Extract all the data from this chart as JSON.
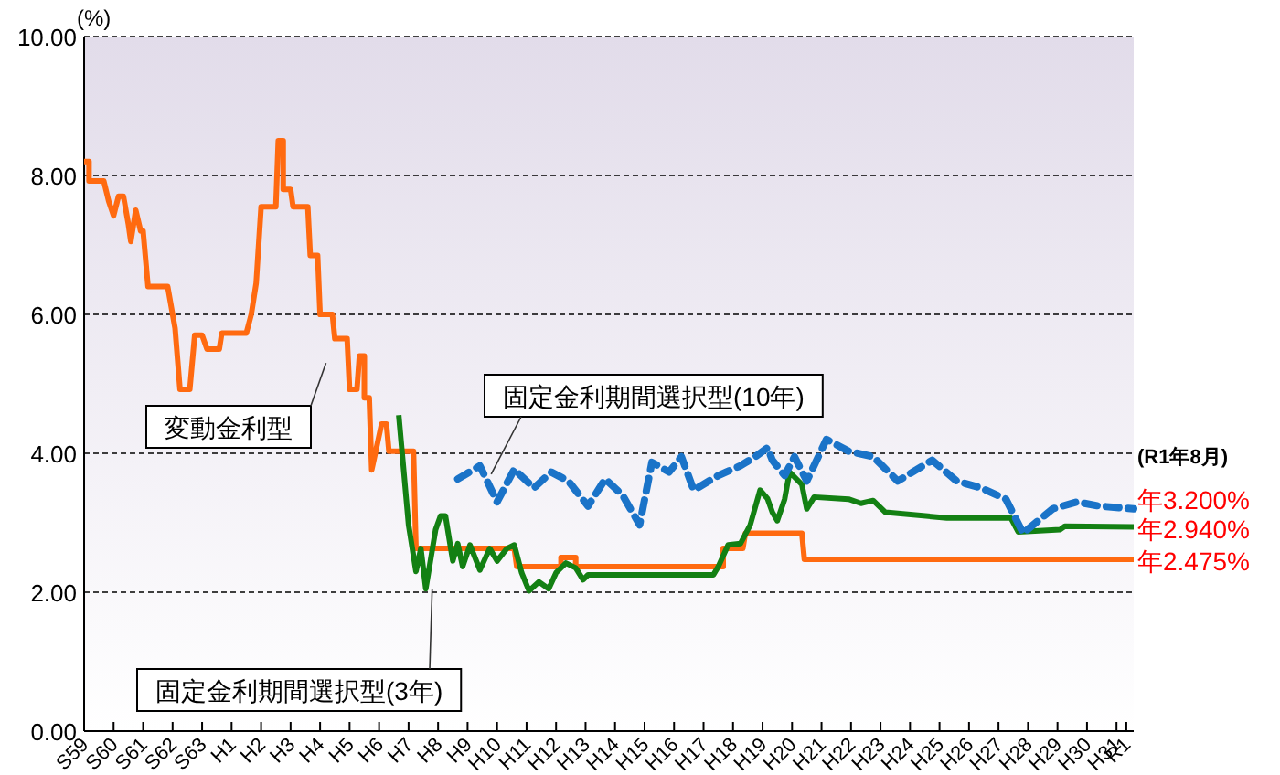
{
  "chart_data": {
    "type": "line",
    "ylabel": "(%)",
    "grid": "y",
    "xlim": [
      "1984-01",
      "2019-08"
    ],
    "ylim": [
      0,
      10
    ],
    "xticks": [
      {
        "value": "1984",
        "label": "S59"
      },
      {
        "value": "1985",
        "label": "S60"
      },
      {
        "value": "1986",
        "label": "S61"
      },
      {
        "value": "1987",
        "label": "S62"
      },
      {
        "value": "1988",
        "label": "S63"
      },
      {
        "value": "1989",
        "label": "H1"
      },
      {
        "value": "1990",
        "label": "H2"
      },
      {
        "value": "1991",
        "label": "H3"
      },
      {
        "value": "1992",
        "label": "H4"
      },
      {
        "value": "1993",
        "label": "H5"
      },
      {
        "value": "1994",
        "label": "H6"
      },
      {
        "value": "1995",
        "label": "H7"
      },
      {
        "value": "1996",
        "label": "H8"
      },
      {
        "value": "1997",
        "label": "H9"
      },
      {
        "value": "1998",
        "label": "H10"
      },
      {
        "value": "1999",
        "label": "H11"
      },
      {
        "value": "2000",
        "label": "H12"
      },
      {
        "value": "2001",
        "label": "H13"
      },
      {
        "value": "2002",
        "label": "H14"
      },
      {
        "value": "2003",
        "label": "H15"
      },
      {
        "value": "2004",
        "label": "H16"
      },
      {
        "value": "2005",
        "label": "H17"
      },
      {
        "value": "2006",
        "label": "H18"
      },
      {
        "value": "2007",
        "label": "H19"
      },
      {
        "value": "2008",
        "label": "H20"
      },
      {
        "value": "2009",
        "label": "H21"
      },
      {
        "value": "2010",
        "label": "H22"
      },
      {
        "value": "2011",
        "label": "H23"
      },
      {
        "value": "2012",
        "label": "H24"
      },
      {
        "value": "2013",
        "label": "H25"
      },
      {
        "value": "2014",
        "label": "H26"
      },
      {
        "value": "2015",
        "label": "H27"
      },
      {
        "value": "2016",
        "label": "H28"
      },
      {
        "value": "2017",
        "label": "H29"
      },
      {
        "value": "2018",
        "label": "H30"
      },
      {
        "value": "2019",
        "label": "H31"
      },
      {
        "value": "2019-05",
        "label": "R1"
      }
    ],
    "yticks": [
      {
        "value": 0,
        "label": "0.00"
      },
      {
        "value": 2,
        "label": "2.00"
      },
      {
        "value": 4,
        "label": "4.00"
      },
      {
        "value": 6,
        "label": "6.00"
      },
      {
        "value": 8,
        "label": "8.00"
      },
      {
        "value": 10,
        "label": "10.00"
      }
    ],
    "series": [
      {
        "name": "変動金利型",
        "color": "#ff6a10",
        "line_style": "solid",
        "x": [
          "1984-01",
          "1984-03",
          "1984-03",
          "1984-09",
          "1984-11",
          "1985-01",
          "1985-03",
          "1985-05",
          "1985-07",
          "1985-08",
          "1985-10",
          "1985-12",
          "1986-01",
          "1986-03",
          "1986-11",
          "1987-02",
          "1987-04",
          "1987-08",
          "1987-10",
          "1988-01",
          "1988-03",
          "1988-08",
          "1988-09",
          "1989-07",
          "1989-09",
          "1989-11",
          "1990-01",
          "1990-07",
          "1990-08",
          "1990-10",
          "1990-10",
          "1991-01",
          "1991-02",
          "1991-08",
          "1991-09",
          "1991-12",
          "1992-01",
          "1992-06",
          "1992-07",
          "1992-12",
          "1993-01",
          "1993-04",
          "1993-05",
          "1993-07",
          "1993-07",
          "1993-09",
          "1993-10",
          "1994-02",
          "1994-04",
          "1994-05",
          "1995-03",
          "1995-04",
          "1998-08",
          "1998-09",
          "2000-03",
          "2000-03",
          "2000-09",
          "2000-09",
          "2005-09",
          "2005-09",
          "2006-05",
          "2006-06",
          "2008-05",
          "2008-06",
          "2019-08"
        ],
        "values": [
          8.2,
          8.2,
          7.92,
          7.92,
          7.63,
          7.42,
          7.7,
          7.7,
          7.3,
          7.05,
          7.5,
          7.2,
          7.2,
          6.4,
          6.4,
          5.8,
          4.92,
          4.92,
          5.7,
          5.7,
          5.5,
          5.5,
          5.73,
          5.73,
          6.0,
          6.45,
          7.55,
          7.55,
          8.5,
          8.5,
          7.8,
          7.8,
          7.55,
          7.55,
          6.85,
          6.85,
          6.0,
          6.0,
          5.65,
          5.65,
          4.92,
          4.92,
          5.4,
          5.4,
          4.8,
          4.8,
          3.76,
          4.42,
          4.42,
          4.03,
          4.03,
          2.63,
          2.63,
          2.37,
          2.37,
          2.5,
          2.5,
          2.37,
          2.37,
          2.63,
          2.63,
          2.85,
          2.85,
          2.475,
          2.475
        ]
      },
      {
        "name": "固定金利期間選択型(3年)",
        "color": "#138013",
        "line_style": "solid",
        "x": [
          "1994-09",
          "1995-01",
          "1995-04",
          "1995-06",
          "1995-08",
          "1995-12",
          "1996-02",
          "1996-04",
          "1996-07",
          "1996-09",
          "1996-11",
          "1997-02",
          "1997-06",
          "1997-10",
          "1998-01",
          "1998-05",
          "1998-08",
          "1998-11",
          "1999-02",
          "1999-06",
          "1999-10",
          "2000-01",
          "2000-05",
          "2000-09",
          "2000-12",
          "2001-02",
          "2005-05",
          "2005-07",
          "2005-11",
          "2006-04",
          "2006-08",
          "2006-12",
          "2007-03",
          "2007-05",
          "2007-07",
          "2007-10",
          "2007-12",
          "2008-05",
          "2008-07",
          "2008-10",
          "2009-12",
          "2010-05",
          "2010-10",
          "2011-03",
          "2013-04",
          "2015-06",
          "2015-09",
          "2017-02",
          "2017-04",
          "2019-08"
        ],
        "values": [
          4.55,
          2.97,
          2.3,
          2.63,
          2.05,
          2.9,
          3.1,
          3.1,
          2.45,
          2.7,
          2.37,
          2.68,
          2.32,
          2.63,
          2.45,
          2.63,
          2.68,
          2.28,
          2.02,
          2.15,
          2.05,
          2.28,
          2.42,
          2.35,
          2.18,
          2.25,
          2.25,
          2.37,
          2.68,
          2.7,
          2.97,
          3.47,
          3.35,
          3.15,
          3.03,
          3.34,
          3.73,
          3.55,
          3.2,
          3.37,
          3.34,
          3.28,
          3.32,
          3.15,
          3.07,
          3.07,
          2.87,
          2.9,
          2.95,
          2.94
        ]
      },
      {
        "name": "固定金利期間選択型(10年)",
        "color": "#1a73c8",
        "line_style": "dashed",
        "x": [
          "1996-09",
          "1997-06",
          "1998-01",
          "1998-08",
          "1999-04",
          "1999-11",
          "2000-06",
          "2001-02",
          "2001-09",
          "2002-04",
          "2002-11",
          "2003-04",
          "2003-11",
          "2004-04",
          "2004-09",
          "2005-07",
          "2006-04",
          "2006-10",
          "2007-03",
          "2007-05",
          "2007-10",
          "2008-02",
          "2008-07",
          "2009-03",
          "2009-12",
          "2010-10",
          "2011-08",
          "2012-10",
          "2013-08",
          "2014-06",
          "2015-04",
          "2015-11",
          "2016-11",
          "2017-09",
          "2018-06",
          "2019-08"
        ],
        "values": [
          3.63,
          3.82,
          3.3,
          3.77,
          3.5,
          3.73,
          3.6,
          3.24,
          3.63,
          3.4,
          2.97,
          3.87,
          3.73,
          3.95,
          3.47,
          3.68,
          3.82,
          3.95,
          4.08,
          3.9,
          3.68,
          3.95,
          3.6,
          4.2,
          4.03,
          3.95,
          3.6,
          3.9,
          3.6,
          3.5,
          3.34,
          2.85,
          3.2,
          3.3,
          3.24,
          3.2
        ]
      }
    ],
    "annotations": [
      "(R1年8月)",
      {
        "text": "年3.200%",
        "x": "2019-08",
        "y": 3.2
      },
      {
        "text": "年2.940%",
        "x": "2019-08",
        "y": 2.94
      },
      {
        "text": "年2.475%",
        "x": "2019-08",
        "y": 2.475
      }
    ]
  }
}
